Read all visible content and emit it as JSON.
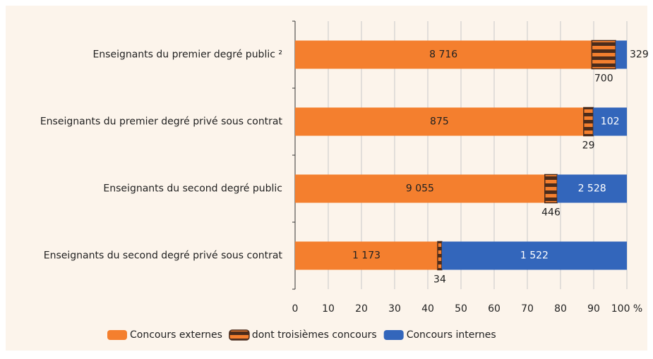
{
  "chart_data": {
    "type": "bar",
    "orientation": "horizontal",
    "stacked": "percent",
    "categories": [
      "Enseignants du premier degré public ²",
      "Enseignants du premier degré privé sous contrat",
      "Enseignants du second degré public",
      "Enseignants du second degré privé sous contrat"
    ],
    "series": [
      {
        "name": "Concours externes",
        "color": "#f47f2e",
        "values": [
          8716,
          875,
          9055,
          1173
        ],
        "value_labels": [
          "8 716",
          "875",
          "9 055",
          "1 173"
        ]
      },
      {
        "name": "dont troisièmes concours",
        "color": "#4b2c1c",
        "values": [
          700,
          29,
          446,
          34
        ],
        "value_labels": [
          "700",
          "29",
          "446",
          "34"
        ]
      },
      {
        "name": "Concours internes",
        "color": "#3366bb",
        "values": [
          329,
          102,
          2528,
          1522
        ],
        "value_labels": [
          "329",
          "102",
          "2 528",
          "1 522"
        ]
      }
    ],
    "xlim": [
      0,
      100
    ],
    "xticks": [
      0,
      10,
      20,
      30,
      40,
      50,
      60,
      70,
      80,
      90,
      {
        "value": 100,
        "label": "100 %"
      }
    ],
    "grid": true
  }
}
